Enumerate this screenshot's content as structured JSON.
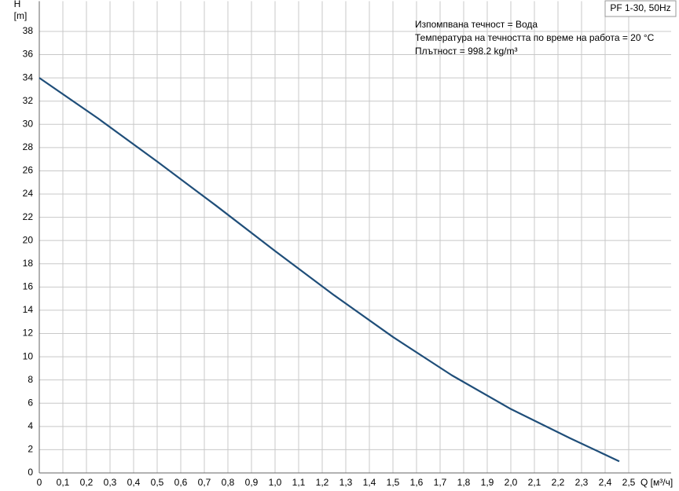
{
  "chart_data": {
    "type": "line",
    "ylabel": "H",
    "ylabel_unit": "[m]",
    "xlabel": "Q [м³/ч]",
    "annotations": [
      "Изпомпвана течност = Вода",
      "Температура на течността по време на работа = 20 °C",
      "Плътност = 998.2 kg/m³"
    ],
    "x": [
      0,
      0.25,
      0.5,
      0.75,
      1.0,
      1.25,
      1.5,
      1.75,
      2.0,
      2.25,
      2.46
    ],
    "series": [
      {
        "name": "PF 1-30, 50Hz",
        "color": "#1f4e79",
        "values": [
          34,
          30.5,
          26.8,
          23.0,
          19.1,
          15.3,
          11.7,
          8.4,
          5.5,
          3.0,
          1.0
        ]
      }
    ],
    "xlim": [
      0,
      2.68
    ],
    "ylim": [
      0,
      40.6
    ],
    "xticks": [
      0,
      {
        "value": 0.1,
        "label": "0,1"
      },
      {
        "value": 0.2,
        "label": "0,2"
      },
      {
        "value": 0.3,
        "label": "0,3"
      },
      {
        "value": 0.4,
        "label": "0,4"
      },
      {
        "value": 0.5,
        "label": "0,5"
      },
      {
        "value": 0.6,
        "label": "0,6"
      },
      {
        "value": 0.7,
        "label": "0,7"
      },
      {
        "value": 0.8,
        "label": "0,8"
      },
      {
        "value": 0.9,
        "label": "0,9"
      },
      {
        "value": 1.0,
        "label": "1,0"
      },
      {
        "value": 1.1,
        "label": "1,1"
      },
      {
        "value": 1.2,
        "label": "1,2"
      },
      {
        "value": 1.3,
        "label": "1,3"
      },
      {
        "value": 1.4,
        "label": "1,4"
      },
      {
        "value": 1.5,
        "label": "1,5"
      },
      {
        "value": 1.6,
        "label": "1,6"
      },
      {
        "value": 1.7,
        "label": "1,7"
      },
      {
        "value": 1.8,
        "label": "1,8"
      },
      {
        "value": 1.9,
        "label": "1,9"
      },
      {
        "value": 2.0,
        "label": "2,0"
      },
      {
        "value": 2.1,
        "label": "2,1"
      },
      {
        "value": 2.2,
        "label": "2,2"
      },
      {
        "value": 2.3,
        "label": "2,3"
      },
      {
        "value": 2.4,
        "label": "2,4"
      },
      {
        "value": 2.5,
        "label": "2,5"
      }
    ],
    "yticks": [
      0,
      2,
      4,
      6,
      8,
      10,
      12,
      14,
      16,
      18,
      20,
      22,
      24,
      26,
      28,
      30,
      32,
      34,
      36,
      38
    ],
    "grid": true
  }
}
